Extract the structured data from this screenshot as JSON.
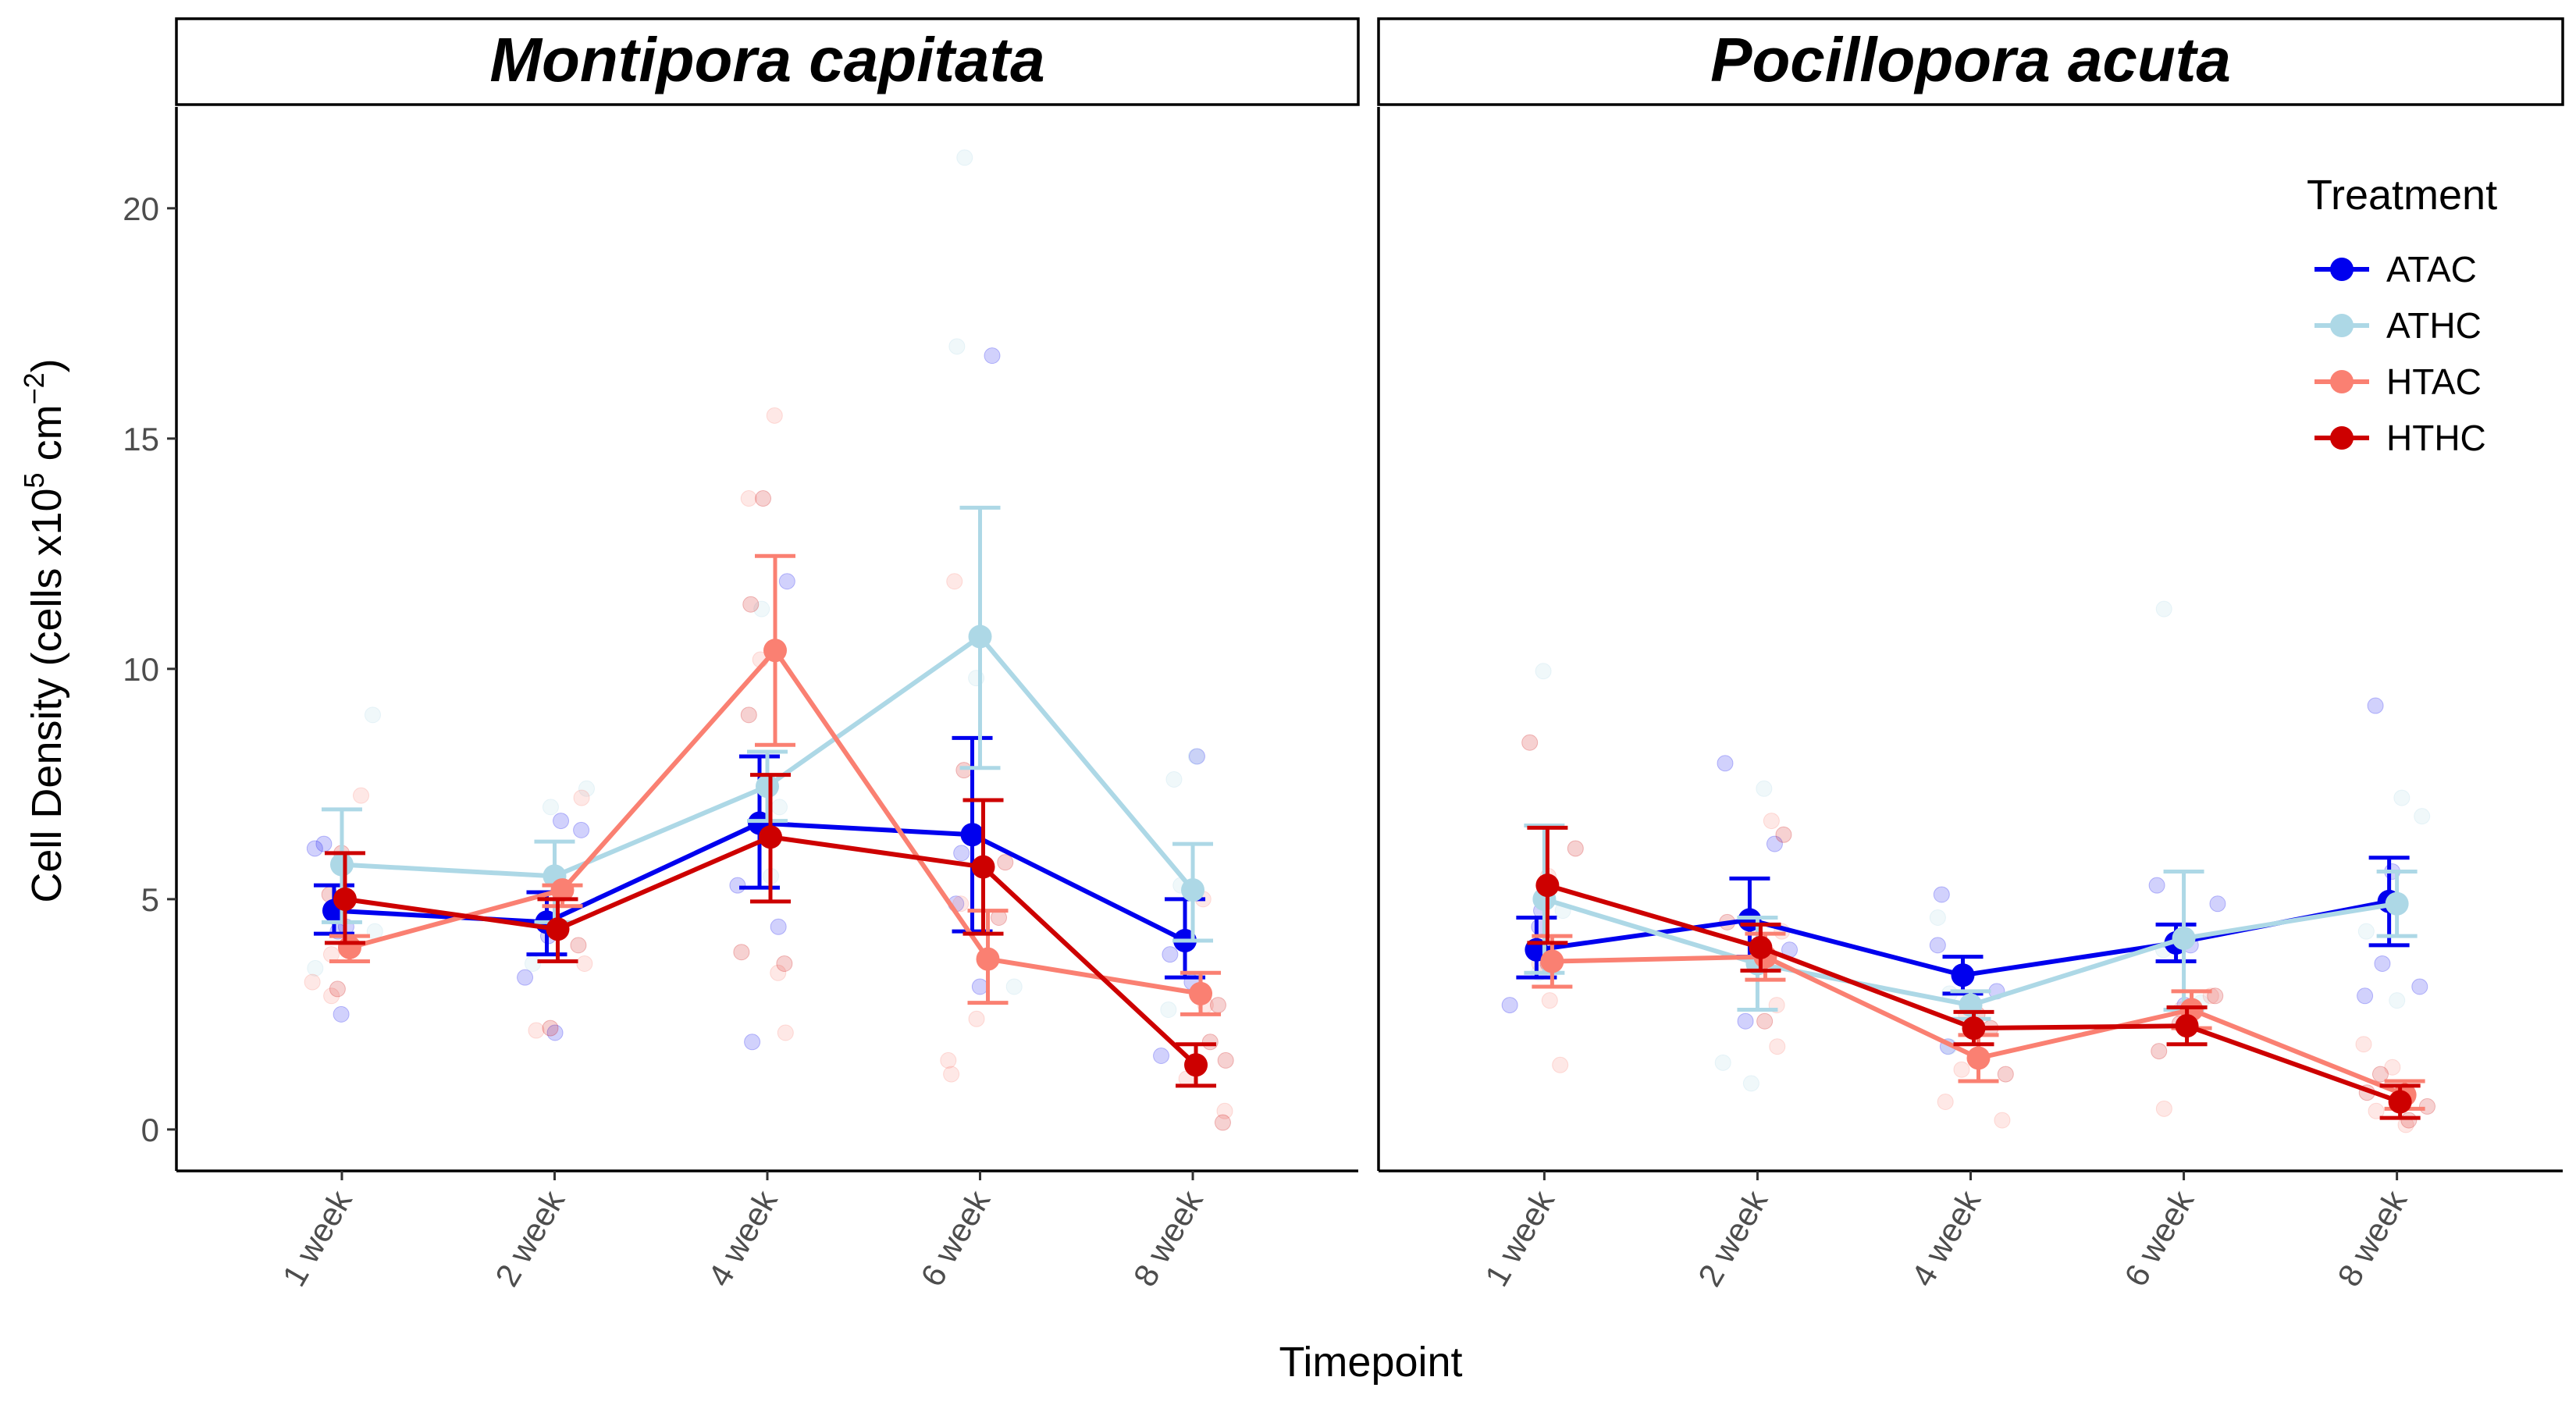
{
  "chart_data": {
    "type": "line",
    "xlabel": "Timepoint",
    "ylabel": {
      "prefix": "Cell Density (cells x10",
      "sup1": "5",
      "mid": " cm",
      "sup2": "−2",
      "suffix": ")"
    },
    "categories": [
      "1 week",
      "2 week",
      "4 week",
      "6 week",
      "8 week"
    ],
    "ylim": [
      -0.9,
      22.2
    ],
    "yticks": [
      "0",
      "5",
      "10",
      "15",
      "20"
    ],
    "legend": {
      "title": "Treatment",
      "placement": "top-right"
    },
    "colors": {
      "ATAC": "#0000ee",
      "ATHC": "#add8e6",
      "HTAC": "#fa8072",
      "HTHC": "#cd0000"
    },
    "panels": [
      {
        "title": "Montipora capitata",
        "series": [
          {
            "name": "ATAC",
            "values": [
              4.75,
              4.5,
              6.65,
              6.4,
              4.1
            ],
            "lower": [
              4.25,
              3.8,
              5.25,
              4.3,
              3.3
            ],
            "upper": [
              5.3,
              5.15,
              8.1,
              8.5,
              5.0
            ]
          },
          {
            "name": "ATHC",
            "values": [
              5.75,
              5.5,
              7.45,
              10.7,
              5.2
            ],
            "lower": [
              4.5,
              4.5,
              6.7,
              7.85,
              4.1
            ],
            "upper": [
              6.95,
              6.25,
              8.2,
              13.5,
              6.2
            ]
          },
          {
            "name": "HTAC",
            "values": [
              3.95,
              5.2,
              10.4,
              3.7,
              2.95
            ],
            "lower": [
              3.65,
              4.85,
              8.35,
              2.75,
              2.5
            ],
            "upper": [
              4.2,
              5.3,
              12.45,
              4.75,
              3.4
            ]
          },
          {
            "name": "HTHC",
            "values": [
              5.0,
              4.35,
              6.35,
              5.7,
              1.4
            ],
            "lower": [
              4.05,
              3.65,
              4.95,
              4.25,
              0.95
            ],
            "upper": [
              6.0,
              5.0,
              7.7,
              7.15,
              1.85
            ]
          }
        ],
        "points": {
          "ATAC": [
            [
              1,
              2.5
            ],
            [
              1,
              4.4
            ],
            [
              1,
              6.1
            ],
            [
              1,
              6.2
            ],
            [
              1,
              4.3
            ],
            [
              2,
              2.1
            ],
            [
              2,
              3.3
            ],
            [
              2,
              6.5
            ],
            [
              2,
              6.7
            ],
            [
              2,
              4.2
            ],
            [
              3,
              1.9
            ],
            [
              3,
              11.9
            ],
            [
              3,
              4.4
            ],
            [
              3,
              5.3
            ],
            [
              4,
              3.1
            ],
            [
              4,
              6.0
            ],
            [
              4,
              16.8
            ],
            [
              4,
              4.9
            ],
            [
              5,
              8.1
            ],
            [
              5,
              3.2
            ],
            [
              5,
              3.8
            ],
            [
              5,
              1.6
            ]
          ],
          "ATHC": [
            [
              1,
              9.0
            ],
            [
              1,
              4.3
            ],
            [
              1,
              3.5
            ],
            [
              2,
              7.0
            ],
            [
              2,
              7.4
            ],
            [
              2,
              3.6
            ],
            [
              3,
              11.3
            ],
            [
              3,
              5.5
            ],
            [
              3,
              7.0
            ],
            [
              4,
              21.1
            ],
            [
              4,
              17.0
            ],
            [
              4,
              3.1
            ],
            [
              4,
              9.8
            ],
            [
              5,
              7.6
            ],
            [
              5,
              8.1
            ],
            [
              5,
              5.3
            ],
            [
              5,
              2.6
            ]
          ],
          "HTAC": [
            [
              1,
              7.25
            ],
            [
              1,
              2.9
            ],
            [
              1,
              3.8
            ],
            [
              1,
              3.2
            ],
            [
              2,
              3.6
            ],
            [
              2,
              2.15
            ],
            [
              2,
              7.2
            ],
            [
              2,
              5.5
            ],
            [
              3,
              13.7
            ],
            [
              3,
              15.5
            ],
            [
              3,
              10.2
            ],
            [
              3,
              2.1
            ],
            [
              3,
              3.4
            ],
            [
              4,
              11.9
            ],
            [
              4,
              4.9
            ],
            [
              4,
              2.4
            ],
            [
              4,
              1.2
            ],
            [
              4,
              1.5
            ],
            [
              5,
              1.1
            ],
            [
              5,
              2.7
            ],
            [
              5,
              5.0
            ],
            [
              5,
              0.4
            ]
          ],
          "HTHC": [
            [
              1,
              5.1
            ],
            [
              1,
              3.05
            ],
            [
              1,
              6.0
            ],
            [
              2,
              2.2
            ],
            [
              2,
              4.0
            ],
            [
              2,
              4.4
            ],
            [
              3,
              13.7
            ],
            [
              3,
              11.4
            ],
            [
              3,
              9.0
            ],
            [
              3,
              3.6
            ],
            [
              3,
              3.85
            ],
            [
              4,
              7.8
            ],
            [
              4,
              4.6
            ],
            [
              4,
              5.8
            ],
            [
              5,
              1.5
            ],
            [
              5,
              0.15
            ],
            [
              5,
              2.7
            ],
            [
              5,
              1.9
            ]
          ]
        }
      },
      {
        "title": "Pocillopora acuta",
        "series": [
          {
            "name": "ATAC",
            "values": [
              3.9,
              4.55,
              3.35,
              4.05,
              4.95
            ],
            "lower": [
              3.3,
              3.75,
              2.95,
              3.65,
              4.0
            ],
            "upper": [
              4.6,
              5.45,
              3.75,
              4.45,
              5.9
            ]
          },
          {
            "name": "ATHC",
            "values": [
              5.0,
              3.6,
              2.7,
              4.15,
              4.9
            ],
            "lower": [
              3.4,
              2.6,
              2.4,
              2.6,
              4.2
            ],
            "upper": [
              6.6,
              4.6,
              3.0,
              5.6,
              5.6
            ]
          },
          {
            "name": "HTAC",
            "values": [
              3.65,
              3.75,
              1.55,
              2.6,
              0.75
            ],
            "lower": [
              3.1,
              3.25,
              1.05,
              2.2,
              0.45
            ],
            "upper": [
              4.2,
              4.25,
              2.05,
              3.0,
              1.05
            ]
          },
          {
            "name": "HTHC",
            "values": [
              5.3,
              3.95,
              2.2,
              2.25,
              0.6
            ],
            "lower": [
              4.05,
              3.45,
              1.85,
              1.85,
              0.25
            ],
            "upper": [
              6.55,
              4.45,
              2.55,
              2.65,
              0.95
            ]
          }
        ],
        "points": {
          "ATAC": [
            [
              1,
              2.7
            ],
            [
              1,
              4.4
            ],
            [
              1,
              4.75
            ],
            [
              2,
              7.95
            ],
            [
              2,
              6.2
            ],
            [
              2,
              2.35
            ],
            [
              2,
              3.9
            ],
            [
              3,
              5.1
            ],
            [
              3,
              4.0
            ],
            [
              3,
              1.8
            ],
            [
              3,
              3.0
            ],
            [
              4,
              4.9
            ],
            [
              4,
              5.3
            ],
            [
              4,
              2.7
            ],
            [
              4,
              4.0
            ],
            [
              5,
              9.2
            ],
            [
              5,
              5.6
            ],
            [
              5,
              3.6
            ],
            [
              5,
              3.1
            ],
            [
              5,
              2.9
            ]
          ],
          "ATHC": [
            [
              1,
              9.95
            ],
            [
              1,
              3.4
            ],
            [
              1,
              4.75
            ],
            [
              2,
              7.4
            ],
            [
              2,
              1.0
            ],
            [
              2,
              1.45
            ],
            [
              3,
              4.6
            ],
            [
              3,
              2.95
            ],
            [
              3,
              1.8
            ],
            [
              4,
              11.3
            ],
            [
              4,
              3.9
            ],
            [
              4,
              2.75
            ],
            [
              5,
              7.2
            ],
            [
              5,
              6.8
            ],
            [
              5,
              4.3
            ],
            [
              5,
              2.8
            ]
          ],
          "HTAC": [
            [
              1,
              5.5
            ],
            [
              1,
              2.8
            ],
            [
              1,
              3.6
            ],
            [
              1,
              1.4
            ],
            [
              2,
              6.7
            ],
            [
              2,
              2.7
            ],
            [
              2,
              1.8
            ],
            [
              2,
              4.3
            ],
            [
              3,
              0.2
            ],
            [
              3,
              0.6
            ],
            [
              3,
              2.5
            ],
            [
              3,
              1.3
            ],
            [
              4,
              0.45
            ],
            [
              4,
              2.9
            ],
            [
              4,
              2.6
            ],
            [
              5,
              1.35
            ],
            [
              5,
              0.7
            ],
            [
              5,
              0.1
            ],
            [
              5,
              0.4
            ],
            [
              5,
              1.85
            ]
          ],
          "HTHC": [
            [
              1,
              8.4
            ],
            [
              1,
              6.1
            ],
            [
              1,
              3.6
            ],
            [
              2,
              6.4
            ],
            [
              2,
              4.5
            ],
            [
              2,
              2.35
            ],
            [
              3,
              2.2
            ],
            [
              3,
              1.2
            ],
            [
              3,
              2.5
            ],
            [
              4,
              2.3
            ],
            [
              4,
              1.7
            ],
            [
              4,
              2.9
            ],
            [
              5,
              1.2
            ],
            [
              5,
              0.5
            ],
            [
              5,
              0.8
            ],
            [
              5,
              0.2
            ]
          ]
        }
      }
    ]
  }
}
